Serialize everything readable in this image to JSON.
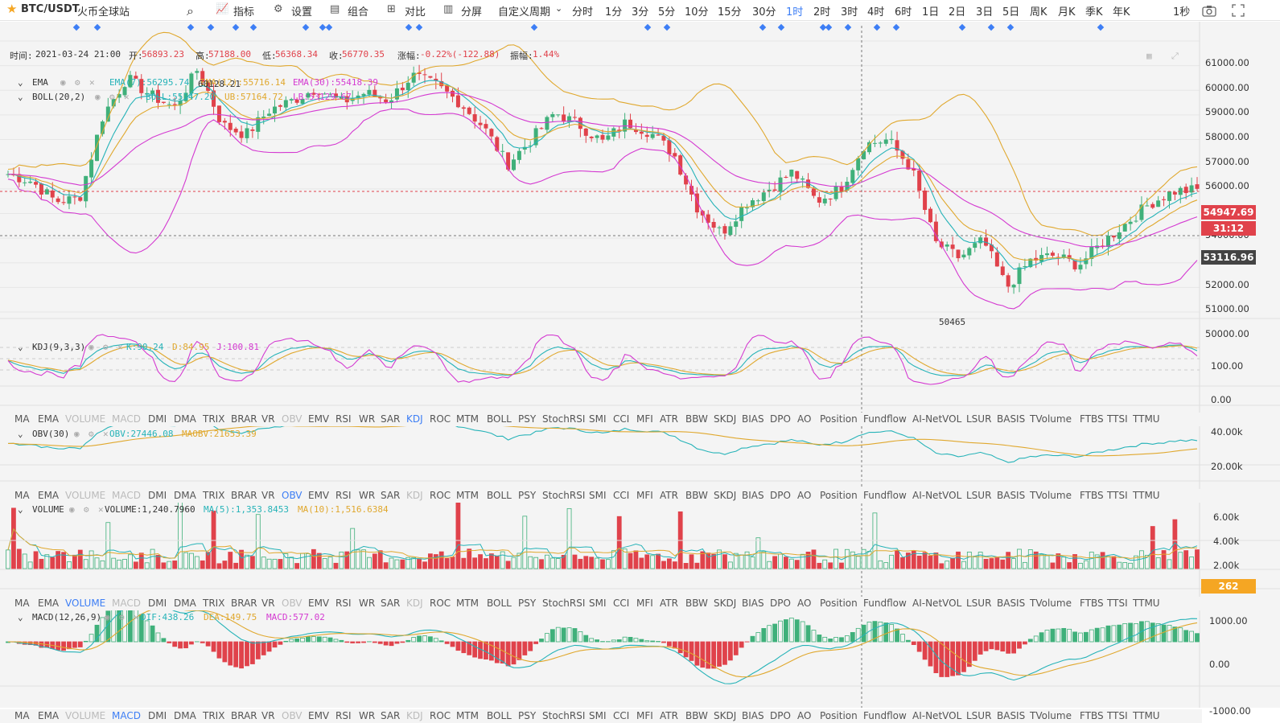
{
  "toolbar": {
    "symbol": "BTC/USDT",
    "exchange": "火币全球站",
    "buttons": [
      "指标",
      "设置",
      "组合",
      "对比",
      "分屏"
    ],
    "custom_period": "自定义周期",
    "periods": [
      "分时",
      "1分",
      "3分",
      "5分",
      "10分",
      "15分",
      "30分",
      "1时",
      "2时",
      "3时",
      "4时",
      "6时",
      "1日",
      "2日",
      "3日",
      "5日",
      "周K",
      "月K",
      "季K",
      "年K"
    ],
    "active_period": "1时",
    "refresh": "1秒"
  },
  "ohlc": {
    "time_label": "时间:",
    "time": "2021-03-24 21:00",
    "open_label": "开:",
    "open": "56893.23",
    "high_label": "高:",
    "high": "57188.00",
    "low_label": "低:",
    "low": "56368.34",
    "close_label": "收:",
    "close": "56770.35",
    "change_label": "涨幅:",
    "change": "-0.22%(-122.88)",
    "amp_label": "振幅:",
    "amp": "1.44%"
  },
  "indicators": {
    "ema": {
      "name": "EMA",
      "v1": "EMA(7):56295.74",
      "v2": "EMA(12):55716.14",
      "v3": "EMA(30):55418.39"
    },
    "boll": {
      "name": "BOLL(20,2)",
      "v1": "BOLL:55147.20",
      "v2": "UB:57164.72",
      "v3": "LB:53129.67"
    },
    "kdj": {
      "name": "KDJ(9,3,3)",
      "v1": "K:90.24",
      "v2": "D:84.95",
      "v3": "J:100.81"
    },
    "obv": {
      "name": "OBV(30)",
      "v1": "OBV:27446.08",
      "v2": "MAOBV:21653.39"
    },
    "volume": {
      "name": "VOLUME",
      "v1": "VOLUME:1,240.7960",
      "v2": "MA(5):1,353.8453",
      "v3": "MA(10):1,516.6384"
    },
    "macd": {
      "name": "MACD(12,26,9)",
      "v1": "DIF:438.26",
      "v2": "DEA:149.75",
      "v3": "MACD:577.02"
    }
  },
  "indicator_tabs": [
    "MA",
    "EMA",
    "VOLUME",
    "MACD",
    "DMI",
    "DMA",
    "TRIX",
    "BRAR",
    "VR",
    "OBV",
    "EMV",
    "RSI",
    "WR",
    "SAR",
    "KDJ",
    "ROC",
    "MTM",
    "BOLL",
    "PSY",
    "StochRSI",
    "SMI",
    "CCI",
    "MFI",
    "ATR",
    "BBW",
    "SKDJ",
    "BIAS",
    "DPO",
    "AO",
    "Position",
    "Fundflow",
    "AI-NetVOL",
    "LSUR",
    "BASIS",
    "TVolume",
    "FTBS",
    "TTSI",
    "TTMU"
  ],
  "tab_rows": [
    {
      "active": "KDJ",
      "dim": [
        "VOLUME",
        "MACD",
        "OBV"
      ]
    },
    {
      "active": "OBV",
      "dim": [
        "VOLUME",
        "MACD",
        "KDJ"
      ]
    },
    {
      "active": "VOLUME",
      "dim": [
        "MACD",
        "OBV",
        "KDJ"
      ]
    },
    {
      "active": "MACD",
      "dim": [
        "VOLUME",
        "OBV",
        "KDJ"
      ]
    }
  ],
  "axes": {
    "main": [
      "61000.00",
      "60000.00",
      "59000.00",
      "58000.00",
      "57000.00",
      "56000.00",
      "55000.00",
      "54000.00",
      "53000.00",
      "52000.00",
      "51000.00",
      "50000.00"
    ],
    "kdj": [
      "100.00",
      "0.00"
    ],
    "obv": [
      "40.00k",
      "20.00k"
    ],
    "volume": [
      "6.00k",
      "4.00k",
      "2.00k"
    ],
    "macd": [
      "1000.00",
      "0.00",
      "-1000.00"
    ]
  },
  "labels": {
    "last_price": "54947.69",
    "countdown": "31:12",
    "crosshair_price": "53116.96",
    "volume_last": "262",
    "high_marker": "60128.21",
    "low_marker": "50465"
  },
  "colors": {
    "up": "#3fb07a",
    "down": "#e0424b",
    "ema7": "#26b3b8",
    "ema12": "#e0a82e",
    "ema30": "#d43ad1",
    "active": "#3d7ef5"
  },
  "chart_data": {
    "type": "candlestick",
    "symbol": "BTC/USDT",
    "interval": "1h",
    "ylim": [
      50000,
      61000
    ],
    "last_candle": {
      "time": "2021-03-24 21:00",
      "open": 56893.23,
      "high": 57188.0,
      "low": 56368.34,
      "close": 56770.35
    },
    "approx_close_path": [
      55600,
      55300,
      54500,
      54600,
      58000,
      59500,
      58800,
      58300,
      59900,
      57600,
      57200,
      58200,
      58600,
      59100,
      58500,
      58900,
      58600,
      59600,
      59200,
      58500,
      57500,
      56000,
      57000,
      58100,
      57600,
      56900,
      57700,
      57300,
      56400,
      54200,
      53200,
      54400,
      55000,
      55700,
      54500,
      55000,
      56800,
      57000,
      55800,
      52800,
      52200,
      52900,
      51000,
      52100,
      52300,
      51900,
      52800,
      53600,
      54400,
      54900,
      54950
    ]
  }
}
